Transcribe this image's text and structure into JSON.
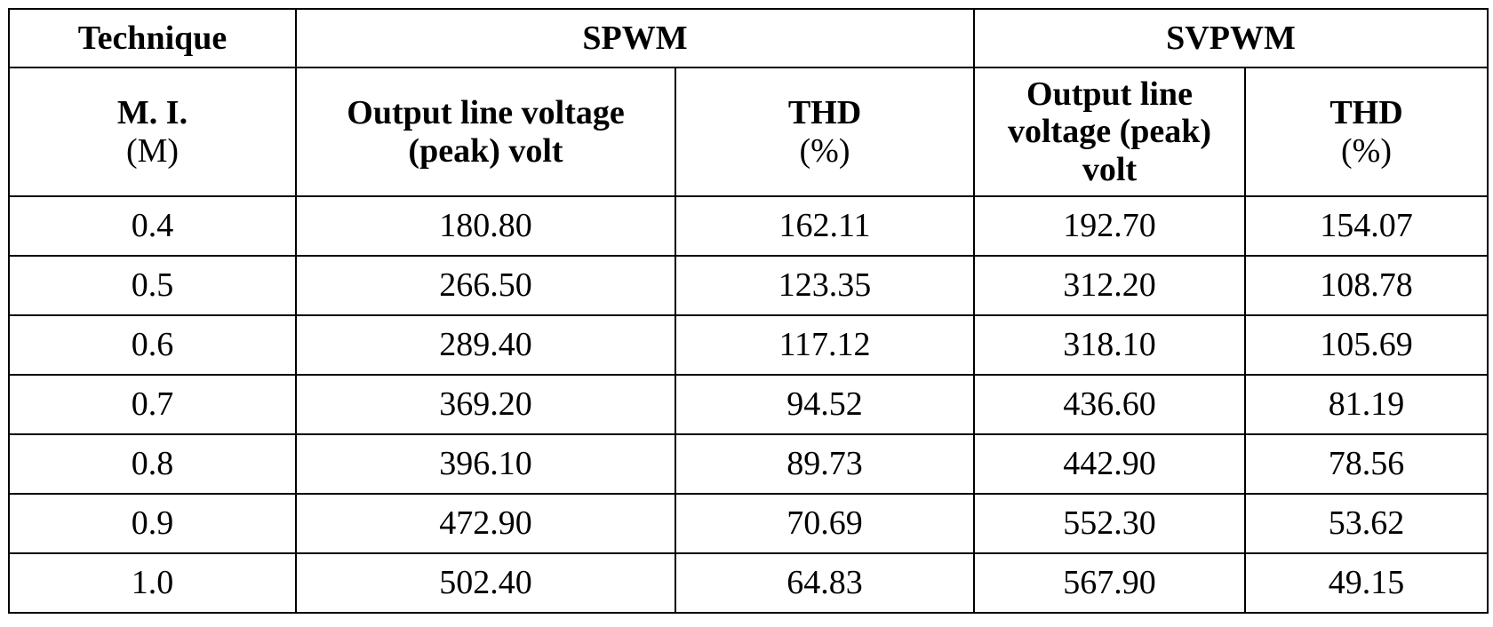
{
  "table": {
    "header": {
      "technique": "Technique",
      "spwm": "SPWM",
      "svpwm": "SVPWM",
      "sub": [
        {
          "bold": "M. I.",
          "normal": "(M)"
        },
        {
          "bold": "Output line voltage (peak) volt"
        },
        {
          "bold": "THD",
          "normal": "(%)"
        },
        {
          "bold": "Output line voltage (peak) volt"
        },
        {
          "bold": "THD",
          "normal": "(%)"
        }
      ]
    },
    "rows": [
      [
        "0.4",
        "180.80",
        "162.11",
        "192.70",
        "154.07"
      ],
      [
        "0.5",
        "266.50",
        "123.35",
        "312.20",
        "108.78"
      ],
      [
        "0.6",
        "289.40",
        "117.12",
        "318.10",
        "105.69"
      ],
      [
        "0.7",
        "369.20",
        "94.52",
        "436.60",
        "81.19"
      ],
      [
        "0.8",
        "396.10",
        "89.73",
        "442.90",
        "78.56"
      ],
      [
        "0.9",
        "472.90",
        "70.69",
        "552.30",
        "53.62"
      ],
      [
        "1.0",
        "502.40",
        "64.83",
        "567.90",
        "49.15"
      ]
    ]
  }
}
